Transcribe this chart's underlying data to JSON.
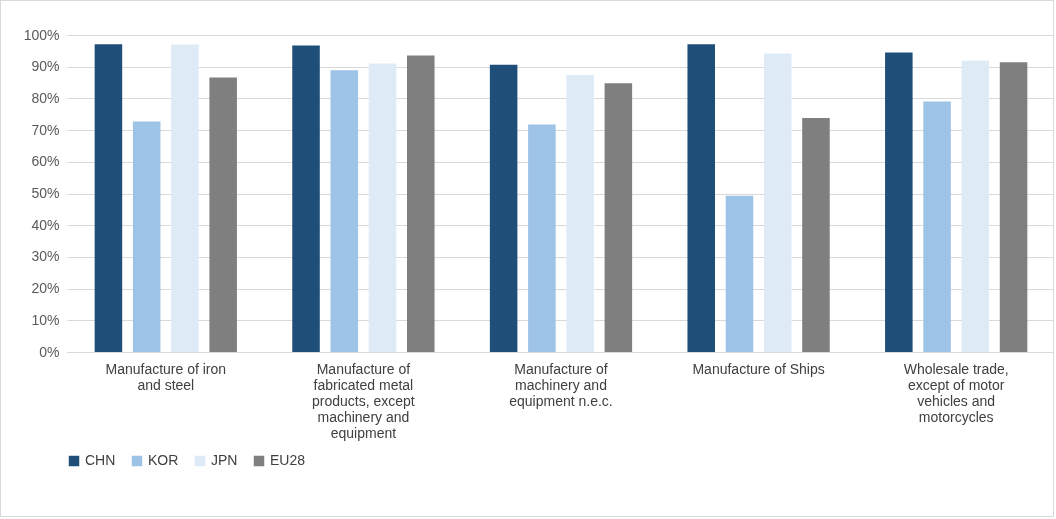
{
  "chart_data": {
    "type": "bar",
    "categories": [
      "Manufacture of iron and steel",
      "Manufacture of fabricated metal products, except machinery and equipment",
      "Manufacture of machinery and equipment n.e.c.",
      "Manufacture of Ships",
      "Wholesale trade, except of motor vehicles and motorcycles"
    ],
    "series": [
      {
        "name": "CHN",
        "color": "#1f4e79",
        "values": [
          97.1,
          96.7,
          90.6,
          97.1,
          94.5
        ]
      },
      {
        "name": "KOR",
        "color": "#9dc3e6",
        "values": [
          72.7,
          88.9,
          71.8,
          49.3,
          79.0
        ]
      },
      {
        "name": "JPN",
        "color": "#deebf7",
        "values": [
          97.0,
          91.0,
          87.4,
          94.2,
          91.9
        ]
      },
      {
        "name": "EU28",
        "color": "#7f7f7f",
        "values": [
          86.6,
          93.5,
          84.8,
          73.8,
          91.4
        ]
      }
    ],
    "ylim": [
      0,
      100
    ],
    "yticks": [
      {
        "value": 0,
        "label": "0%"
      },
      {
        "value": 10,
        "label": "10%"
      },
      {
        "value": 20,
        "label": "20%"
      },
      {
        "value": 30,
        "label": "30%"
      },
      {
        "value": 40,
        "label": "40%"
      },
      {
        "value": 50,
        "label": "50%"
      },
      {
        "value": 60,
        "label": "60%"
      },
      {
        "value": 70,
        "label": "70%"
      },
      {
        "value": 80,
        "label": "80%"
      },
      {
        "value": 90,
        "label": "90%"
      },
      {
        "value": 100,
        "label": "100%"
      }
    ],
    "grid": "y",
    "legend": "bottom"
  }
}
